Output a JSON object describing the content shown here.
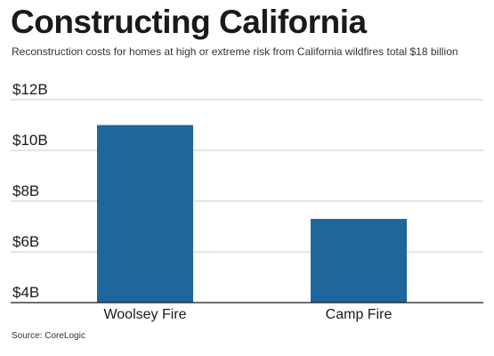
{
  "title": "Constructing California",
  "subtitle": "Reconstruction costs for homes at high or extreme risk from California wildfires total $18 billion",
  "source": "Source: CoreLogic",
  "colors": {
    "bar": "#1f669c",
    "grid": "#c8c8c8",
    "axis": "#1a1a1a"
  },
  "chart_data": {
    "type": "bar",
    "categories": [
      "Woolsey Fire",
      "Camp Fire"
    ],
    "values": [
      11.0,
      7.3
    ],
    "ylim": [
      4,
      12
    ],
    "yticks": [
      4,
      6,
      8,
      10,
      12
    ],
    "ytick_labels": [
      "$4B",
      "$6B",
      "$8B",
      "$10B",
      "$12B"
    ],
    "xlabel": "",
    "ylabel": "",
    "grid": true
  }
}
